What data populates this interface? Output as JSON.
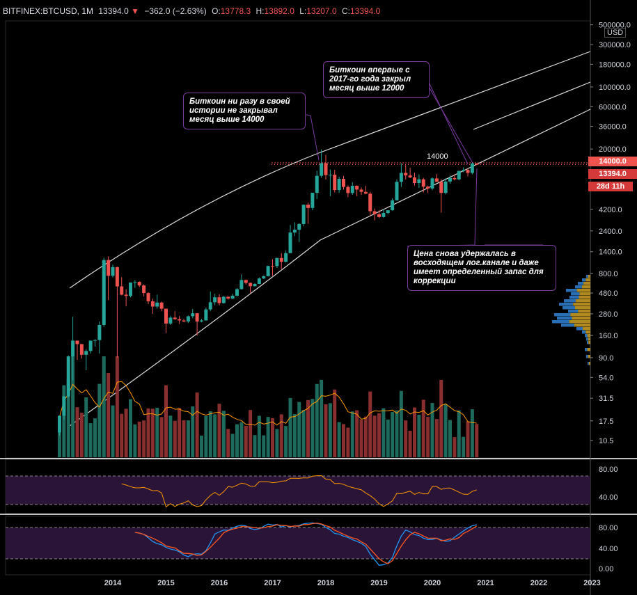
{
  "header": {
    "symbol": "BITFINEX:BTCUSD, 1M",
    "last": "13394.0",
    "change_arrow": "▼",
    "change": "−362.0 (−2.63%)",
    "o_label": "O:",
    "o": "13778.3",
    "h_label": "H:",
    "h": "13892.0",
    "l_label": "L:",
    "l": "13207.0",
    "c_label": "C:",
    "c": "13394.0"
  },
  "price_tags": {
    "level": "14000.0",
    "last": "13394.0",
    "countdown": "28d 11h"
  },
  "level_label": "14000",
  "currency": "USD",
  "annotations": [
    {
      "text": "Биткоин ни разу в своей истории не закрывал месяц выше 14000"
    },
    {
      "text": "Биткоин впервые с 2017-го года закрыл месяц выше 12000"
    },
    {
      "text": "Цена снова удержалась в восходящем лог.канале и даже имеет определенный запас для коррекции"
    }
  ],
  "colors": {
    "up": "#26a69a",
    "down": "#ef5350",
    "vol_up": "#1e6b5e",
    "vol_down": "#8a2f2f",
    "rsi": "#ff9800",
    "stoch_k": "#2196f3",
    "stoch_d": "#ff5722",
    "band": "#2a1538",
    "level": "#ef5350",
    "annotation_border": "#7b3aa0"
  },
  "chart_data": {
    "type": "candlestick",
    "scale": "log",
    "price_axis": [
      "500000.0",
      "300000.0",
      "180000.0",
      "100000.0",
      "60000.0",
      "36000.0",
      "20000.0",
      "14000.0",
      "4200.0",
      "2400.0",
      "1400.0",
      "800.0",
      "480.0",
      "280.0",
      "160.0",
      "90.0",
      "54.0",
      "31.5",
      "17.5",
      "10.5"
    ],
    "x_labels": [
      "2014",
      "2015",
      "2016",
      "2017",
      "2018",
      "2019",
      "2020",
      "2021",
      "2022",
      "2023"
    ],
    "rsi_axis": [
      "80.00",
      "40.00"
    ],
    "stoch_axis": [
      "80.00",
      "40.00",
      "0.00"
    ],
    "candles": [
      {
        "t": "2013-01",
        "o": 13,
        "h": 20,
        "l": 12,
        "c": 20
      },
      {
        "t": "2013-02",
        "o": 20,
        "h": 33,
        "l": 18,
        "c": 33
      },
      {
        "t": "2013-03",
        "o": 33,
        "h": 95,
        "l": 32,
        "c": 93
      },
      {
        "t": "2013-04",
        "o": 93,
        "h": 260,
        "l": 50,
        "c": 140
      },
      {
        "t": "2013-05",
        "o": 140,
        "h": 140,
        "l": 85,
        "c": 128
      },
      {
        "t": "2013-06",
        "o": 128,
        "h": 128,
        "l": 88,
        "c": 97
      },
      {
        "t": "2013-07",
        "o": 97,
        "h": 112,
        "l": 65,
        "c": 107
      },
      {
        "t": "2013-08",
        "o": 107,
        "h": 140,
        "l": 100,
        "c": 140
      },
      {
        "t": "2013-09",
        "o": 140,
        "h": 145,
        "l": 120,
        "c": 142
      },
      {
        "t": "2013-10",
        "o": 142,
        "h": 230,
        "l": 100,
        "c": 210
      },
      {
        "t": "2013-11",
        "o": 210,
        "h": 1200,
        "l": 200,
        "c": 1130
      },
      {
        "t": "2013-12",
        "o": 1130,
        "h": 1240,
        "l": 400,
        "c": 750
      },
      {
        "t": "2014-01",
        "o": 750,
        "h": 1000,
        "l": 720,
        "c": 940
      },
      {
        "t": "2014-02",
        "o": 940,
        "h": 950,
        "l": 90,
        "c": 570
      },
      {
        "t": "2014-03",
        "o": 570,
        "h": 725,
        "l": 450,
        "c": 460
      },
      {
        "t": "2014-04",
        "o": 460,
        "h": 530,
        "l": 340,
        "c": 445
      },
      {
        "t": "2014-05",
        "o": 445,
        "h": 630,
        "l": 430,
        "c": 630
      },
      {
        "t": "2014-06",
        "o": 630,
        "h": 670,
        "l": 550,
        "c": 640
      },
      {
        "t": "2014-07",
        "o": 640,
        "h": 650,
        "l": 560,
        "c": 585
      },
      {
        "t": "2014-08",
        "o": 585,
        "h": 600,
        "l": 440,
        "c": 480
      },
      {
        "t": "2014-09",
        "o": 480,
        "h": 490,
        "l": 360,
        "c": 388
      },
      {
        "t": "2014-10",
        "o": 388,
        "h": 415,
        "l": 280,
        "c": 338
      },
      {
        "t": "2014-11",
        "o": 338,
        "h": 460,
        "l": 320,
        "c": 375
      },
      {
        "t": "2014-12",
        "o": 375,
        "h": 385,
        "l": 300,
        "c": 320
      },
      {
        "t": "2015-01",
        "o": 320,
        "h": 320,
        "l": 170,
        "c": 218
      },
      {
        "t": "2015-02",
        "o": 218,
        "h": 265,
        "l": 210,
        "c": 254
      },
      {
        "t": "2015-03",
        "o": 254,
        "h": 300,
        "l": 240,
        "c": 244
      },
      {
        "t": "2015-04",
        "o": 244,
        "h": 265,
        "l": 215,
        "c": 236
      },
      {
        "t": "2015-05",
        "o": 236,
        "h": 245,
        "l": 225,
        "c": 230
      },
      {
        "t": "2015-06",
        "o": 230,
        "h": 268,
        "l": 220,
        "c": 263
      },
      {
        "t": "2015-07",
        "o": 263,
        "h": 318,
        "l": 250,
        "c": 284
      },
      {
        "t": "2015-08",
        "o": 284,
        "h": 285,
        "l": 160,
        "c": 230
      },
      {
        "t": "2015-09",
        "o": 230,
        "h": 245,
        "l": 225,
        "c": 236
      },
      {
        "t": "2015-10",
        "o": 236,
        "h": 330,
        "l": 235,
        "c": 314
      },
      {
        "t": "2015-11",
        "o": 314,
        "h": 500,
        "l": 300,
        "c": 378
      },
      {
        "t": "2015-12",
        "o": 378,
        "h": 470,
        "l": 350,
        "c": 430
      },
      {
        "t": "2016-01",
        "o": 430,
        "h": 465,
        "l": 350,
        "c": 370
      },
      {
        "t": "2016-02",
        "o": 370,
        "h": 445,
        "l": 365,
        "c": 436
      },
      {
        "t": "2016-03",
        "o": 436,
        "h": 440,
        "l": 405,
        "c": 416
      },
      {
        "t": "2016-04",
        "o": 416,
        "h": 470,
        "l": 410,
        "c": 448
      },
      {
        "t": "2016-05",
        "o": 448,
        "h": 545,
        "l": 440,
        "c": 531
      },
      {
        "t": "2016-06",
        "o": 531,
        "h": 780,
        "l": 525,
        "c": 673
      },
      {
        "t": "2016-07",
        "o": 673,
        "h": 680,
        "l": 600,
        "c": 624
      },
      {
        "t": "2016-08",
        "o": 624,
        "h": 630,
        "l": 480,
        "c": 573
      },
      {
        "t": "2016-09",
        "o": 573,
        "h": 620,
        "l": 570,
        "c": 608
      },
      {
        "t": "2016-10",
        "o": 608,
        "h": 720,
        "l": 605,
        "c": 700
      },
      {
        "t": "2016-11",
        "o": 700,
        "h": 755,
        "l": 690,
        "c": 742
      },
      {
        "t": "2016-12",
        "o": 742,
        "h": 980,
        "l": 740,
        "c": 966
      },
      {
        "t": "2017-01",
        "o": 966,
        "h": 1150,
        "l": 750,
        "c": 965
      },
      {
        "t": "2017-02",
        "o": 965,
        "h": 1200,
        "l": 920,
        "c": 1190
      },
      {
        "t": "2017-03",
        "o": 1190,
        "h": 1350,
        "l": 890,
        "c": 1080
      },
      {
        "t": "2017-04",
        "o": 1080,
        "h": 1450,
        "l": 1060,
        "c": 1350
      },
      {
        "t": "2017-05",
        "o": 1350,
        "h": 2800,
        "l": 1350,
        "c": 2300
      },
      {
        "t": "2017-06",
        "o": 2300,
        "h": 3000,
        "l": 2100,
        "c": 2480
      },
      {
        "t": "2017-07",
        "o": 2480,
        "h": 2920,
        "l": 1800,
        "c": 2870
      },
      {
        "t": "2017-08",
        "o": 2870,
        "h": 4750,
        "l": 2700,
        "c": 4740
      },
      {
        "t": "2017-09",
        "o": 4740,
        "h": 5000,
        "l": 2900,
        "c": 4350
      },
      {
        "t": "2017-10",
        "o": 4350,
        "h": 6450,
        "l": 4100,
        "c": 6450
      },
      {
        "t": "2017-11",
        "o": 6450,
        "h": 11400,
        "l": 5500,
        "c": 10000
      },
      {
        "t": "2017-12",
        "o": 10000,
        "h": 19800,
        "l": 9500,
        "c": 13850
      },
      {
        "t": "2018-01",
        "o": 13850,
        "h": 17200,
        "l": 9100,
        "c": 10200
      },
      {
        "t": "2018-02",
        "o": 10200,
        "h": 11800,
        "l": 5900,
        "c": 10300
      },
      {
        "t": "2018-03",
        "o": 10300,
        "h": 11700,
        "l": 6500,
        "c": 6920
      },
      {
        "t": "2018-04",
        "o": 6920,
        "h": 9800,
        "l": 6440,
        "c": 9250
      },
      {
        "t": "2018-05",
        "o": 9250,
        "h": 10000,
        "l": 7000,
        "c": 7500
      },
      {
        "t": "2018-06",
        "o": 7500,
        "h": 7800,
        "l": 5750,
        "c": 6400
      },
      {
        "t": "2018-07",
        "o": 6400,
        "h": 8500,
        "l": 6100,
        "c": 7730
      },
      {
        "t": "2018-08",
        "o": 7730,
        "h": 7800,
        "l": 5900,
        "c": 7000
      },
      {
        "t": "2018-09",
        "o": 7000,
        "h": 7400,
        "l": 6100,
        "c": 6600
      },
      {
        "t": "2018-10",
        "o": 6600,
        "h": 7700,
        "l": 6200,
        "c": 6300
      },
      {
        "t": "2018-11",
        "o": 6300,
        "h": 6600,
        "l": 3500,
        "c": 4000
      },
      {
        "t": "2018-12",
        "o": 4000,
        "h": 4300,
        "l": 3150,
        "c": 3700
      },
      {
        "t": "2019-01",
        "o": 3700,
        "h": 4100,
        "l": 3350,
        "c": 3440
      },
      {
        "t": "2019-02",
        "o": 3440,
        "h": 4200,
        "l": 3380,
        "c": 3820
      },
      {
        "t": "2019-03",
        "o": 3820,
        "h": 4120,
        "l": 3700,
        "c": 4100
      },
      {
        "t": "2019-04",
        "o": 4100,
        "h": 5600,
        "l": 4050,
        "c": 5300
      },
      {
        "t": "2019-05",
        "o": 5300,
        "h": 9100,
        "l": 5270,
        "c": 8550
      },
      {
        "t": "2019-06",
        "o": 8550,
        "h": 13900,
        "l": 7500,
        "c": 10800
      },
      {
        "t": "2019-07",
        "o": 10800,
        "h": 13200,
        "l": 9100,
        "c": 10100
      },
      {
        "t": "2019-08",
        "o": 10100,
        "h": 12300,
        "l": 9400,
        "c": 9600
      },
      {
        "t": "2019-09",
        "o": 9600,
        "h": 10900,
        "l": 7800,
        "c": 8300
      },
      {
        "t": "2019-10",
        "o": 8300,
        "h": 10400,
        "l": 7300,
        "c": 9150
      },
      {
        "t": "2019-11",
        "o": 9150,
        "h": 9500,
        "l": 6500,
        "c": 7550
      },
      {
        "t": "2019-12",
        "o": 7550,
        "h": 7750,
        "l": 6400,
        "c": 7200
      },
      {
        "t": "2020-01",
        "o": 7200,
        "h": 9600,
        "l": 6900,
        "c": 9350
      },
      {
        "t": "2020-02",
        "o": 9350,
        "h": 10500,
        "l": 8600,
        "c": 8550
      },
      {
        "t": "2020-03",
        "o": 8550,
        "h": 9200,
        "l": 3850,
        "c": 6420
      },
      {
        "t": "2020-04",
        "o": 6420,
        "h": 9450,
        "l": 6170,
        "c": 8630
      },
      {
        "t": "2020-05",
        "o": 8630,
        "h": 10100,
        "l": 8150,
        "c": 9450
      },
      {
        "t": "2020-06",
        "o": 9450,
        "h": 10400,
        "l": 8900,
        "c": 9140
      },
      {
        "t": "2020-07",
        "o": 9140,
        "h": 11450,
        "l": 8900,
        "c": 11350
      },
      {
        "t": "2020-08",
        "o": 11350,
        "h": 12480,
        "l": 10960,
        "c": 11650
      },
      {
        "t": "2020-09",
        "o": 11650,
        "h": 12100,
        "l": 9880,
        "c": 10780
      },
      {
        "t": "2020-10",
        "o": 10780,
        "h": 14100,
        "l": 10400,
        "c": 13780
      },
      {
        "t": "2020-11",
        "o": 13778.3,
        "h": 13892,
        "l": 13207,
        "c": 13394
      }
    ]
  }
}
